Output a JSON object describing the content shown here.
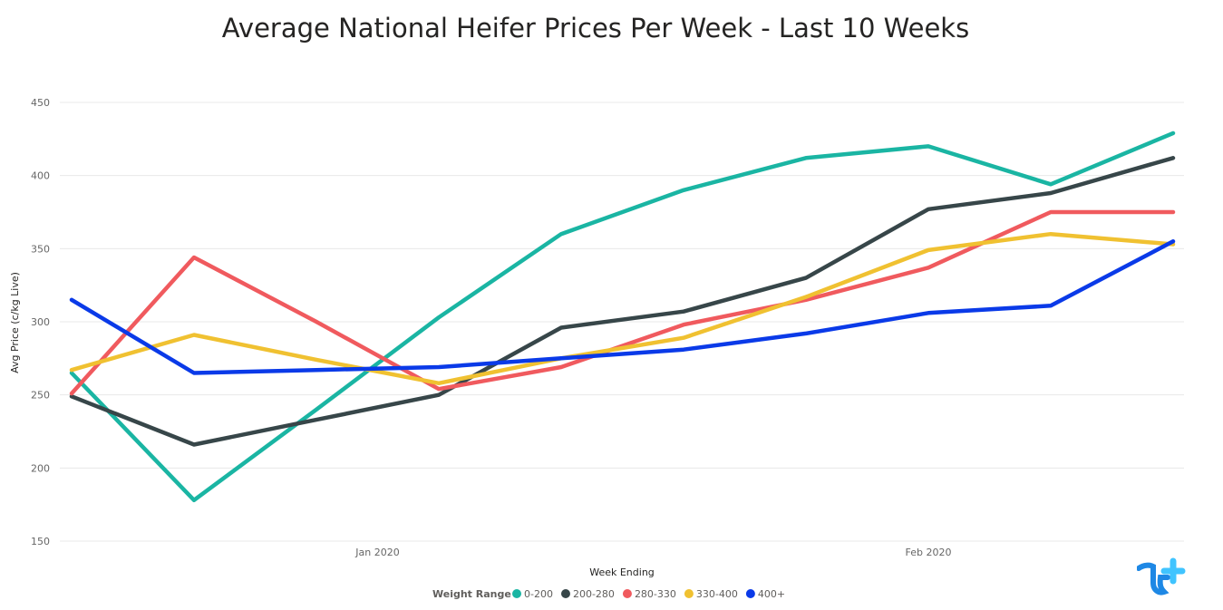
{
  "chart_data": {
    "type": "line",
    "title": "Average National Heifer Prices Per Week - Last 10 Weeks",
    "xlabel": "Week Ending",
    "ylabel": "Avg Price (c/kg Live)",
    "ylim": [
      150,
      450
    ],
    "yticks": [
      150,
      200,
      250,
      300,
      350,
      400,
      450
    ],
    "x_tick_labels": [
      {
        "label": "Jan 2020",
        "pos": 2.5
      },
      {
        "label": "Feb 2020",
        "pos": 7.0
      }
    ],
    "x": [
      0,
      1,
      2,
      3,
      4,
      5,
      6,
      7,
      8,
      9
    ],
    "grid": true,
    "legend_title": "Weight Range",
    "legend_position": "bottom",
    "series": [
      {
        "name": "0-200",
        "color": "#1ab5a3",
        "values": [
          265,
          178,
          240,
          303,
          360,
          390,
          412,
          420,
          394,
          429
        ]
      },
      {
        "name": "200-280",
        "color": "#374649",
        "values": [
          249,
          216,
          233,
          250,
          296,
          307,
          330,
          377,
          388,
          412
        ]
      },
      {
        "name": "280-330",
        "color": "#f05a5e",
        "values": [
          251,
          344,
          300,
          254,
          269,
          298,
          315,
          337,
          375,
          375
        ]
      },
      {
        "name": "330-400",
        "color": "#f0c131",
        "values": [
          267,
          291,
          274,
          258,
          275,
          289,
          317,
          349,
          360,
          353
        ]
      },
      {
        "name": "400+",
        "color": "#0a3ae8",
        "values": [
          315,
          265,
          267,
          269,
          275,
          281,
          292,
          306,
          311,
          355
        ]
      }
    ]
  }
}
